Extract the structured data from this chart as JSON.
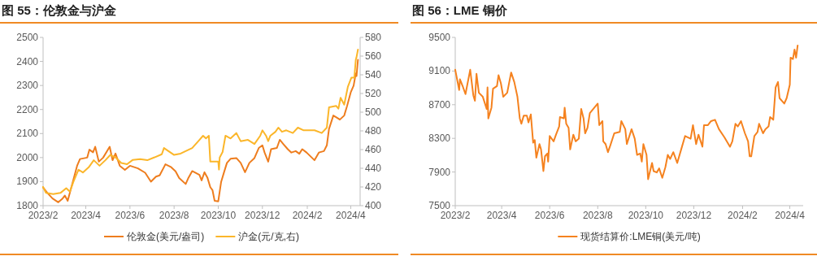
{
  "chart_data": [
    {
      "type": "line",
      "title": "图 55：伦敦金与沪金",
      "legend": "bottom",
      "xlim": [
        "2023-02-01",
        "2024-04-14"
      ],
      "xticks": [
        {
          "value": "2023-02-01",
          "label": "2023/2"
        },
        {
          "value": "2023-04-01",
          "label": "2023/4"
        },
        {
          "value": "2023-06-01",
          "label": "2023/6"
        },
        {
          "value": "2023-08-01",
          "label": "2023/8"
        },
        {
          "value": "2023-10-01",
          "label": "2023/10"
        },
        {
          "value": "2023-12-01",
          "label": "2023/12"
        },
        {
          "value": "2024-02-01",
          "label": "2024/2"
        },
        {
          "value": "2024-04-01",
          "label": "2024/4"
        }
      ],
      "ylim": [
        1800,
        2500
      ],
      "yticks": [
        1800,
        1900,
        2000,
        2100,
        2200,
        2300,
        2400,
        2500
      ],
      "y2lim": [
        400,
        580
      ],
      "y2ticks": [
        400,
        420,
        440,
        460,
        480,
        500,
        520,
        540,
        560,
        580
      ],
      "series": [
        {
          "name": "伦敦金(美元/盎司)",
          "color": "#ee7d1e",
          "x": [
            "2023-02-01",
            "2023-02-07",
            "2023-02-14",
            "2023-02-22",
            "2023-02-28",
            "2023-03-03",
            "2023-03-07",
            "2023-03-13",
            "2023-03-20",
            "2023-03-24",
            "2023-04-03",
            "2023-04-06",
            "2023-04-11",
            "2023-04-14",
            "2023-04-19",
            "2023-04-25",
            "2023-05-04",
            "2023-05-08",
            "2023-05-12",
            "2023-05-18",
            "2023-05-25",
            "2023-06-01",
            "2023-06-12",
            "2023-06-22",
            "2023-06-30",
            "2023-07-07",
            "2023-07-12",
            "2023-07-20",
            "2023-07-28",
            "2023-08-03",
            "2023-08-08",
            "2023-08-17",
            "2023-08-21",
            "2023-08-26",
            "2023-09-05",
            "2023-09-08",
            "2023-09-12",
            "2023-09-16",
            "2023-09-20",
            "2023-09-23",
            "2023-09-26",
            "2023-10-01",
            "2023-10-05",
            "2023-10-09",
            "2023-10-13",
            "2023-10-18",
            "2023-10-26",
            "2023-11-01",
            "2023-11-07",
            "2023-11-13",
            "2023-11-20",
            "2023-11-26",
            "2023-12-01",
            "2023-12-04",
            "2023-12-09",
            "2023-12-13",
            "2023-12-21",
            "2023-12-25",
            "2023-12-30",
            "2024-01-05",
            "2024-01-10",
            "2024-01-16",
            "2024-01-21",
            "2024-01-25",
            "2024-01-31",
            "2024-02-11",
            "2024-02-17",
            "2024-02-24",
            "2024-02-28",
            "2024-03-02",
            "2024-03-08",
            "2024-03-14",
            "2024-03-17",
            "2024-03-23",
            "2024-03-27",
            "2024-04-01",
            "2024-04-05",
            "2024-04-08",
            "2024-04-09",
            "2024-04-11"
          ],
          "values": [
            1876,
            1853,
            1830,
            1814,
            1830,
            1842,
            1820,
            1887,
            1966,
            1994,
            2000,
            2033,
            2022,
            2045,
            1983,
            2000,
            2045,
            1989,
            2017,
            1966,
            1949,
            1966,
            1955,
            1937,
            1900,
            1921,
            1926,
            1972,
            1960,
            1943,
            1915,
            1890,
            1917,
            1944,
            1928,
            1905,
            1939,
            1917,
            1877,
            1865,
            1820,
            1818,
            1899,
            1939,
            1978,
            1995,
            1998,
            1978,
            1939,
            1978,
            1998,
            2040,
            2051,
            2021,
            1983,
            2035,
            2040,
            2074,
            2056,
            2035,
            2021,
            2027,
            2016,
            2035,
            2021,
            1989,
            2021,
            2027,
            2051,
            2119,
            2175,
            2164,
            2158,
            2175,
            2215,
            2271,
            2299,
            2350,
            2339,
            2407
          ]
        },
        {
          "name": "沪金(元/克,右)",
          "color": "#fbb62a",
          "axis": "y2",
          "x": [
            "2023-02-01",
            "2023-02-05",
            "2023-02-15",
            "2023-02-25",
            "2023-03-05",
            "2023-03-10",
            "2023-03-15",
            "2023-03-22",
            "2023-03-28",
            "2023-04-05",
            "2023-04-12",
            "2023-04-20",
            "2023-04-28",
            "2023-05-05",
            "2023-05-12",
            "2023-05-20",
            "2023-05-28",
            "2023-06-05",
            "2023-06-15",
            "2023-06-25",
            "2023-07-05",
            "2023-07-15",
            "2023-07-18",
            "2023-07-25",
            "2023-08-01",
            "2023-08-10",
            "2023-08-20",
            "2023-08-26",
            "2023-09-05",
            "2023-09-10",
            "2023-09-14",
            "2023-09-18",
            "2023-09-20",
            "2023-10-01",
            "2023-10-02",
            "2023-10-03",
            "2023-10-07",
            "2023-10-11",
            "2023-10-18",
            "2023-10-26",
            "2023-11-01",
            "2023-11-11",
            "2023-11-20",
            "2023-11-28",
            "2023-12-01",
            "2023-12-06",
            "2023-12-09",
            "2023-12-12",
            "2023-12-19",
            "2023-12-23",
            "2023-12-28",
            "2024-01-03",
            "2024-01-12",
            "2024-01-19",
            "2024-01-27",
            "2024-02-11",
            "2024-02-21",
            "2024-02-28",
            "2024-03-02",
            "2024-03-12",
            "2024-03-15",
            "2024-03-18",
            "2024-03-23",
            "2024-03-28",
            "2024-04-02",
            "2024-04-06",
            "2024-04-08",
            "2024-04-09",
            "2024-04-11"
          ],
          "values": [
            420,
            413.6,
            412.3,
            413.6,
            418.7,
            415,
            425.7,
            438.5,
            435.5,
            441,
            448.6,
            442.7,
            448.6,
            454.3,
            451.7,
            445.6,
            444.3,
            449,
            449.8,
            448.6,
            451.7,
            455,
            461.7,
            458,
            454.3,
            455.7,
            459.4,
            461.7,
            470.4,
            474.8,
            471.9,
            474.8,
            447.2,
            447.2,
            438.6,
            451.6,
            457.4,
            474.8,
            471.9,
            477.7,
            469,
            470.4,
            466,
            474.8,
            480.6,
            474.8,
            469,
            474.8,
            479,
            483.5,
            479,
            480.6,
            477.7,
            483.5,
            480.6,
            480.6,
            477.7,
            483.5,
            505.2,
            506.7,
            503.8,
            515.4,
            508,
            527,
            537,
            537,
            556,
            558.8,
            567
          ]
        }
      ]
    },
    {
      "type": "line",
      "title": "图 56：LME 铜价",
      "legend": "bottom",
      "xlim": [
        "2023-02-01",
        "2024-04-18"
      ],
      "xticks": [
        {
          "value": "2023-02-01",
          "label": "2023/2"
        },
        {
          "value": "2023-04-01",
          "label": "2023/4"
        },
        {
          "value": "2023-06-01",
          "label": "2023/6"
        },
        {
          "value": "2023-08-01",
          "label": "2023/8"
        },
        {
          "value": "2023-10-01",
          "label": "2023/10"
        },
        {
          "value": "2023-12-01",
          "label": "2023/12"
        },
        {
          "value": "2024-02-01",
          "label": "2024/2"
        },
        {
          "value": "2024-04-01",
          "label": "2024/4"
        }
      ],
      "ylim": [
        7500,
        9500
      ],
      "yticks": [
        7500,
        7900,
        8300,
        8700,
        9100,
        9500
      ],
      "series": [
        {
          "name": "现货结算价:LME铜(美元/吨)",
          "color": "#f5821f",
          "x": [
            "2023-02-01",
            "2023-02-06",
            "2023-02-07",
            "2023-02-11",
            "2023-02-14",
            "2023-02-20",
            "2023-02-24",
            "2023-02-26",
            "2023-02-28",
            "2023-03-03",
            "2023-03-08",
            "2023-03-13",
            "2023-03-14",
            "2023-03-15",
            "2023-03-19",
            "2023-03-21",
            "2023-03-26",
            "2023-03-28",
            "2023-03-31",
            "2023-04-03",
            "2023-04-08",
            "2023-04-13",
            "2023-04-17",
            "2023-04-21",
            "2023-04-24",
            "2023-04-26",
            "2023-04-29",
            "2023-05-03",
            "2023-05-05",
            "2023-05-08",
            "2023-05-11",
            "2023-05-13",
            "2023-05-15",
            "2023-05-19",
            "2023-05-21",
            "2023-05-24",
            "2023-05-26",
            "2023-05-29",
            "2023-05-30",
            "2023-06-01",
            "2023-06-06",
            "2023-06-09",
            "2023-06-13",
            "2023-06-14",
            "2023-06-19",
            "2023-06-20",
            "2023-06-22",
            "2023-06-25",
            "2023-06-27",
            "2023-07-01",
            "2023-07-04",
            "2023-07-08",
            "2023-07-11",
            "2023-07-14",
            "2023-07-16",
            "2023-07-19",
            "2023-07-22",
            "2023-08-01",
            "2023-08-03",
            "2023-08-07",
            "2023-08-08",
            "2023-08-11",
            "2023-08-14",
            "2023-08-17",
            "2023-08-22",
            "2023-08-29",
            "2023-08-31",
            "2023-09-05",
            "2023-09-07",
            "2023-09-13",
            "2023-09-17",
            "2023-09-20",
            "2023-09-24",
            "2023-09-26",
            "2023-09-28",
            "2023-10-02",
            "2023-10-04",
            "2023-10-09",
            "2023-10-11",
            "2023-10-15",
            "2023-10-18",
            "2023-10-22",
            "2023-10-26",
            "2023-10-29",
            "2023-11-01",
            "2023-11-05",
            "2023-11-10",
            "2023-11-15",
            "2023-11-20",
            "2023-11-27",
            "2023-11-30",
            "2023-12-04",
            "2023-12-07",
            "2023-12-12",
            "2023-12-14",
            "2023-12-19",
            "2023-12-23",
            "2023-12-28",
            "2024-01-02",
            "2024-01-09",
            "2024-01-16",
            "2024-01-19",
            "2024-01-23",
            "2024-01-26",
            "2024-01-30",
            "2024-02-04",
            "2024-02-08",
            "2024-02-10",
            "2024-02-12",
            "2024-02-16",
            "2024-02-20",
            "2024-02-22",
            "2024-02-27",
            "2024-03-01",
            "2024-03-05",
            "2024-03-07",
            "2024-03-11",
            "2024-03-14",
            "2024-03-17",
            "2024-03-19",
            "2024-03-22",
            "2024-03-25",
            "2024-03-28",
            "2024-04-01",
            "2024-04-02",
            "2024-04-05",
            "2024-04-07",
            "2024-04-09",
            "2024-04-11"
          ],
          "values": [
            9115,
            8874,
            9002,
            8906,
            8826,
            9115,
            8810,
            8746,
            9067,
            8842,
            8794,
            8649,
            8906,
            8537,
            8665,
            8890,
            8922,
            9051,
            8954,
            8794,
            8842,
            9083,
            8970,
            8794,
            8537,
            8473,
            8569,
            8569,
            8489,
            8585,
            8248,
            8280,
            8071,
            8232,
            8168,
            7911,
            8087,
            8120,
            8023,
            8328,
            8264,
            8344,
            8441,
            8553,
            8537,
            8665,
            8473,
            8425,
            8168,
            8344,
            8264,
            8296,
            8649,
            8537,
            8360,
            8425,
            8601,
            8713,
            8457,
            8505,
            8264,
            8232,
            8136,
            8216,
            8360,
            8376,
            8505,
            8409,
            8232,
            8409,
            8296,
            8104,
            8120,
            8023,
            8232,
            8104,
            7815,
            8007,
            7911,
            7895,
            7943,
            7831,
            7959,
            8104,
            8055,
            8136,
            8007,
            8168,
            8328,
            8296,
            8457,
            8232,
            8344,
            8200,
            8457,
            8457,
            8505,
            8521,
            8409,
            8312,
            8200,
            8264,
            8473,
            8441,
            8505,
            8360,
            8264,
            8087,
            8087,
            8328,
            8376,
            8473,
            8360,
            8409,
            8441,
            8553,
            8521,
            8906,
            8970,
            8778,
            8746,
            8713,
            8778,
            8938,
            9259,
            9243,
            9356,
            9259,
            9404
          ]
        }
      ]
    }
  ]
}
